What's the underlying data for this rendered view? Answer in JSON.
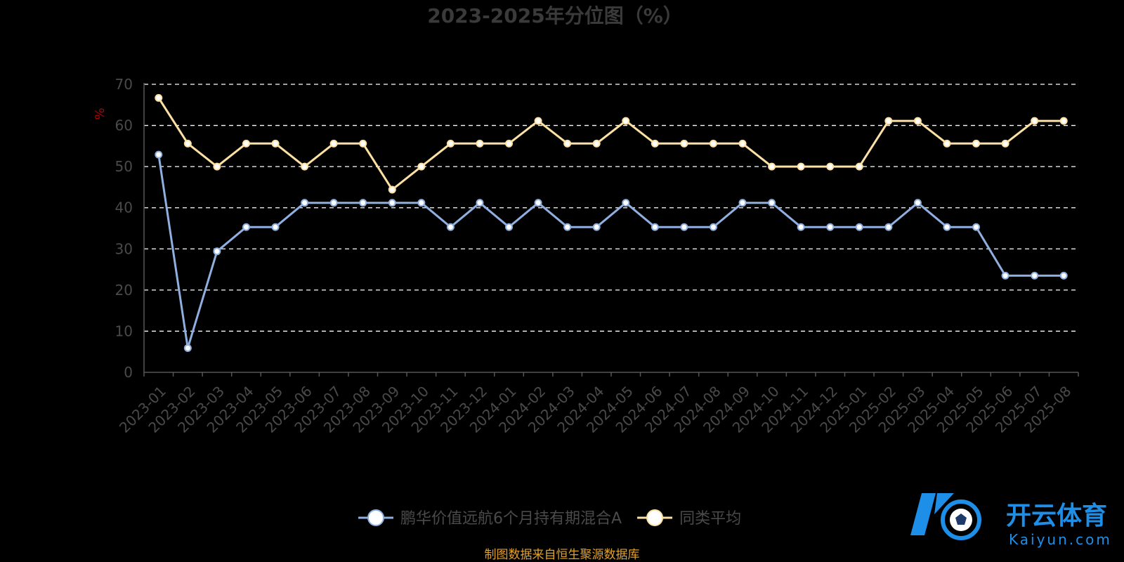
{
  "chart_data": {
    "type": "line",
    "title": "2023-2025年分位图（%）",
    "ylabel": "%",
    "xlabel": "",
    "ylim": [
      0,
      70
    ],
    "yticks": [
      0,
      10,
      20,
      30,
      40,
      50,
      60,
      70
    ],
    "grid": true,
    "legend_position": "bottom",
    "categories": [
      "2023-01",
      "2023-02",
      "2023-03",
      "2023-04",
      "2023-05",
      "2023-06",
      "2023-07",
      "2023-08",
      "2023-09",
      "2023-10",
      "2023-11",
      "2023-12",
      "2024-01",
      "2024-02",
      "2024-03",
      "2024-04",
      "2024-05",
      "2024-06",
      "2024-07",
      "2024-08",
      "2024-09",
      "2024-10",
      "2024-11",
      "2024-12",
      "2025-01",
      "2025-02",
      "2025-03",
      "2025-04",
      "2025-05",
      "2025-06",
      "2025-07",
      "2025-08"
    ],
    "series": [
      {
        "name": "鹏华价值远航6个月持有期混合A",
        "color": "#8fafe0",
        "values": [
          52.9,
          5.9,
          29.4,
          35.3,
          35.3,
          41.2,
          41.2,
          41.2,
          41.2,
          41.2,
          35.3,
          41.2,
          35.3,
          41.2,
          35.3,
          35.3,
          41.2,
          35.3,
          35.3,
          35.3,
          41.2,
          41.2,
          35.3,
          35.3,
          35.3,
          35.3,
          41.2,
          35.3,
          35.3,
          23.5,
          23.5,
          23.5
        ]
      },
      {
        "name": "同类平均",
        "color": "#fde0a3",
        "values": [
          66.7,
          55.6,
          50.0,
          55.6,
          55.6,
          50.0,
          55.6,
          55.6,
          44.4,
          50.0,
          55.6,
          55.6,
          55.6,
          61.1,
          55.6,
          55.6,
          61.1,
          55.6,
          55.6,
          55.6,
          55.6,
          50.0,
          50.0,
          50.0,
          50.0,
          61.1,
          61.1,
          55.6,
          55.6,
          55.6,
          61.1,
          61.1
        ]
      }
    ]
  },
  "colors": {
    "background": "#000000",
    "title": "#3a3a3a",
    "axis_text": "#4a4a4a",
    "axis_line": "#555555",
    "grid": "#ffffff",
    "ylabel": "#b00000",
    "legend_text": "#4a4a4a",
    "source_text": "#e0a12a",
    "brand_blue": "#1e8fe8"
  },
  "footer": {
    "source": "制图数据来自恒生聚源数据库"
  },
  "watermark": {
    "brand_cn": "开云体育",
    "brand_en": "Kaiyun.com"
  }
}
